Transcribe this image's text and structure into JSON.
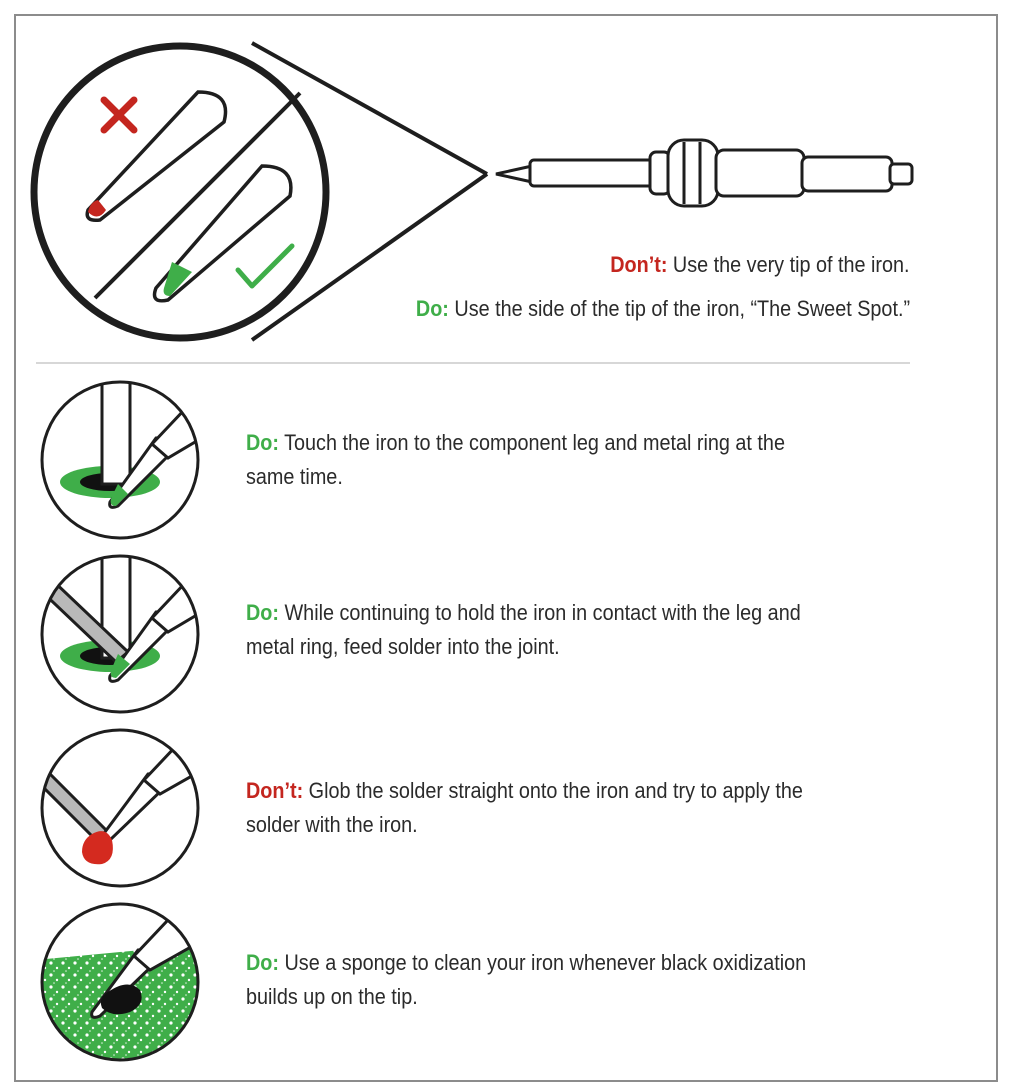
{
  "colors": {
    "red": "#c4261f",
    "green": "#3fae49",
    "text": "#2b2b2b",
    "line": "#2a2a2a"
  },
  "top": {
    "dont": {
      "label": "Don’t:",
      "text": " Use the very tip of the iron."
    },
    "do": {
      "label": "Do:",
      "text": " Use the side of the tip of the iron, “The Sweet Spot.”"
    }
  },
  "steps": [
    {
      "label": "Do:",
      "line1": " Touch the iron to the component leg and metal ring at the",
      "line2": "same time."
    },
    {
      "label": "Do:",
      "line1": "  While continuing to hold the iron in contact with the leg and",
      "line2": "metal ring, feed solder into the joint."
    },
    {
      "label": "Don’t:",
      "line1": " Glob the solder straight onto the iron and try to apply the",
      "line2": "solder with the iron."
    },
    {
      "label": "Do:",
      "line1": " Use a sponge to clean your iron whenever black oxidization",
      "line2": "builds up on the tip."
    }
  ],
  "icons": [
    "cross-icon",
    "checkmark-icon"
  ]
}
